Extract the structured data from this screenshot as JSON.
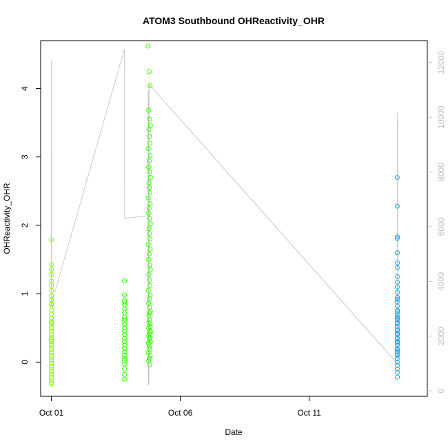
{
  "chart_data": {
    "type": "scatter",
    "title": "ATOM3 Southbound OHReactivity_OHR",
    "xlabel": "Date",
    "ylabel": "OHReactivity_OHR",
    "xlim": [
      "2016-09-30T14:00",
      "2016-10-15T14:00"
    ],
    "ylim": [
      -0.5,
      4.7
    ],
    "y2lim": [
      -200,
      12800
    ],
    "x_ticks": [
      {
        "label": "Oct 01",
        "value": "2016-10-01T00:00"
      },
      {
        "label": "Oct 06",
        "value": "2016-10-06T00:00"
      },
      {
        "label": "Oct 11",
        "value": "2016-10-11T00:00"
      }
    ],
    "y_ticks": [
      0,
      1,
      2,
      3,
      4
    ],
    "y2_ticks": [
      0,
      2000,
      4000,
      6000,
      8000,
      10000,
      12000
    ],
    "grid": false,
    "legend": "none",
    "colors": {
      "series_early": "#7fff00",
      "series_mid": "#33ff00",
      "series_late": "#1ca3e8",
      "secondary_line": "#c8c8c8",
      "right_axis": "#bfbfbf"
    },
    "series": [
      {
        "color": "#7fff00",
        "x": [
          "2016-10-01T00:00",
          "2016-10-01T00:00",
          "2016-10-01T00:05",
          "2016-10-01T00:05",
          "2016-10-01T00:10",
          "2016-10-01T00:10",
          "2016-10-01T00:00",
          "2016-10-01T00:05",
          "2016-10-01T00:05",
          "2016-10-01T00:10",
          "2016-10-01T00:00",
          "2016-10-01T00:05",
          "2016-10-01T00:10",
          "2016-10-01T00:00",
          "2016-10-01T00:05",
          "2016-10-01T00:10",
          "2016-10-01T00:00",
          "2016-10-01T00:05",
          "2016-10-01T00:10",
          "2016-10-01T00:00",
          "2016-10-01T00:05",
          "2016-10-01T00:10",
          "2016-10-01T00:00",
          "2016-10-01T00:05",
          "2016-10-01T00:10",
          "2016-10-01T00:00",
          "2016-10-01T00:05",
          "2016-10-01T00:10",
          "2016-10-01T00:00",
          "2016-10-01T00:05",
          "2016-10-01T00:10",
          "2016-10-01T00:00",
          "2016-10-01T00:05",
          "2016-10-01T00:10",
          "2016-10-01T00:00",
          "2016-10-01T00:05",
          "2016-10-01T00:10",
          "2016-10-01T00:00",
          "2016-10-01T00:05",
          "2016-10-01T00:10"
        ],
        "y": [
          1.79,
          1.43,
          1.36,
          1.28,
          1.18,
          1.05,
          0.97,
          0.91,
          0.84,
          0.76,
          0.7,
          0.64,
          0.6,
          0.56,
          0.51,
          0.45,
          0.4,
          0.36,
          0.33,
          0.3,
          0.26,
          0.22,
          0.18,
          0.14,
          0.1,
          0.06,
          0.02,
          -0.02,
          -0.06,
          -0.1,
          -0.14,
          -0.18,
          -0.22,
          -0.26,
          -0.3,
          -0.32,
          0.85,
          0.58,
          0.49,
          1.12
        ]
      },
      {
        "color": "#33ff00",
        "x": [
          "2016-10-03T20:00",
          "2016-10-03T20:00",
          "2016-10-03T20:05",
          "2016-10-03T20:00",
          "2016-10-03T20:05",
          "2016-10-03T20:00",
          "2016-10-03T20:05",
          "2016-10-03T20:00",
          "2016-10-03T20:05",
          "2016-10-03T20:00",
          "2016-10-03T20:05",
          "2016-10-03T20:00",
          "2016-10-03T20:05",
          "2016-10-03T20:00",
          "2016-10-03T20:05",
          "2016-10-03T20:00",
          "2016-10-03T20:05",
          "2016-10-03T20:00",
          "2016-10-03T20:05",
          "2016-10-03T20:00",
          "2016-10-03T20:05",
          "2016-10-03T20:00",
          "2016-10-03T20:05",
          "2016-10-03T20:00",
          "2016-10-03T20:05",
          "2016-10-03T20:00"
        ],
        "y": [
          1.19,
          0.98,
          0.9,
          0.84,
          0.78,
          0.72,
          0.66,
          0.6,
          0.55,
          0.5,
          0.45,
          0.4,
          0.35,
          0.3,
          0.25,
          0.2,
          0.15,
          0.1,
          0.05,
          0.02,
          -0.03,
          -0.1,
          -0.18,
          -0.25,
          0.88,
          0.63
        ]
      },
      {
        "color": "#33ff00",
        "x": [
          "2016-10-04T18:00",
          "2016-10-04T19:00",
          "2016-10-04T20:00",
          "2016-10-04T18:30",
          "2016-10-04T19:30",
          "2016-10-04T20:15",
          "2016-10-04T18:45",
          "2016-10-04T19:15",
          "2016-10-04T19:45",
          "2016-10-04T18:15",
          "2016-10-04T20:00",
          "2016-10-04T19:00",
          "2016-10-04T18:30",
          "2016-10-04T19:30",
          "2016-10-04T20:15",
          "2016-10-04T18:45",
          "2016-10-04T19:15",
          "2016-10-04T19:45",
          "2016-10-04T18:15",
          "2016-10-04T20:00",
          "2016-10-04T19:00",
          "2016-10-04T18:30",
          "2016-10-04T19:30",
          "2016-10-04T20:15",
          "2016-10-04T18:45",
          "2016-10-04T19:15",
          "2016-10-04T19:45",
          "2016-10-04T18:15",
          "2016-10-04T20:00",
          "2016-10-04T19:00",
          "2016-10-04T18:30",
          "2016-10-04T19:30",
          "2016-10-04T20:15",
          "2016-10-04T18:45",
          "2016-10-04T19:15",
          "2016-10-04T19:45",
          "2016-10-04T18:15",
          "2016-10-04T20:00",
          "2016-10-04T19:00",
          "2016-10-04T18:30",
          "2016-10-04T19:30",
          "2016-10-04T20:15",
          "2016-10-04T18:45",
          "2016-10-04T19:15",
          "2016-10-04T19:45",
          "2016-10-04T18:15",
          "2016-10-04T20:00",
          "2016-10-04T19:00",
          "2016-10-04T18:30",
          "2016-10-04T19:30",
          "2016-10-04T20:15",
          "2016-10-04T18:45",
          "2016-10-04T19:15",
          "2016-10-04T19:45",
          "2016-10-04T18:15",
          "2016-10-04T20:00",
          "2016-10-04T19:00",
          "2016-10-04T18:30",
          "2016-10-04T19:30",
          "2016-10-04T20:15",
          "2016-10-04T18:45",
          "2016-10-04T19:15",
          "2016-10-04T19:45",
          "2016-10-04T18:15",
          "2016-10-04T20:00"
        ],
        "y": [
          4.62,
          4.25,
          4.04,
          3.68,
          3.55,
          3.46,
          3.4,
          3.3,
          3.2,
          3.12,
          3.02,
          2.94,
          2.85,
          2.78,
          2.7,
          2.62,
          2.55,
          2.48,
          2.4,
          2.32,
          2.25,
          2.18,
          2.1,
          2.02,
          1.95,
          1.88,
          1.8,
          1.72,
          1.65,
          1.58,
          1.5,
          1.42,
          1.35,
          1.28,
          1.2,
          1.12,
          1.05,
          0.98,
          0.92,
          0.86,
          0.8,
          0.74,
          0.68,
          0.62,
          0.56,
          0.5,
          0.46,
          0.42,
          0.38,
          0.34,
          0.3,
          0.26,
          0.22,
          0.18,
          0.14,
          0.1,
          0.06,
          0.02,
          -0.04,
          0.44,
          0.58,
          0.72,
          0.36,
          0.28,
          0.52
        ]
      },
      {
        "color": "#1ca3e8",
        "x": [
          "2016-10-14T10:00",
          "2016-10-14T10:00",
          "2016-10-14T10:05",
          "2016-10-14T10:00",
          "2016-10-14T10:05",
          "2016-10-14T10:10",
          "2016-10-14T10:00",
          "2016-10-14T10:05",
          "2016-10-14T10:10",
          "2016-10-14T10:00",
          "2016-10-14T10:05",
          "2016-10-14T10:10",
          "2016-10-14T10:00",
          "2016-10-14T10:05",
          "2016-10-14T10:10",
          "2016-10-14T10:00",
          "2016-10-14T10:05",
          "2016-10-14T10:10",
          "2016-10-14T10:00",
          "2016-10-14T10:05",
          "2016-10-14T10:10",
          "2016-10-14T10:00",
          "2016-10-14T10:05",
          "2016-10-14T10:10",
          "2016-10-14T10:00",
          "2016-10-14T10:05",
          "2016-10-14T10:10",
          "2016-10-14T10:00",
          "2016-10-14T10:05",
          "2016-10-14T10:10",
          "2016-10-14T10:00",
          "2016-10-14T10:05",
          "2016-10-14T10:10",
          "2016-10-14T10:00",
          "2016-10-14T10:05",
          "2016-10-14T10:10",
          "2016-10-14T10:00",
          "2016-10-14T10:05",
          "2016-10-14T10:10",
          "2016-10-14T10:00",
          "2016-10-14T10:05",
          "2016-10-14T10:10",
          "2016-10-14T10:00",
          "2016-10-14T10:05"
        ],
        "y": [
          2.7,
          2.28,
          1.83,
          1.81,
          1.6,
          1.45,
          1.38,
          1.25,
          1.17,
          1.1,
          1.02,
          0.95,
          0.88,
          0.82,
          0.76,
          0.7,
          0.64,
          0.58,
          0.52,
          0.46,
          0.4,
          0.35,
          0.3,
          0.25,
          0.2,
          0.15,
          0.1,
          0.05,
          0.0,
          -0.05,
          -0.1,
          -0.15,
          -0.22,
          0.92,
          0.62,
          0.48,
          0.34,
          0.18,
          0.74,
          0.56,
          0.42,
          0.28,
          0.12,
          0.66
        ]
      }
    ],
    "secondary_line": {
      "axis": "right",
      "x": [
        "2016-10-01T00:00",
        "2016-10-01T00:05",
        "2016-10-01T00:10",
        "2016-10-01T00:15",
        "2016-10-03T20:00",
        "2016-10-03T20:05",
        "2016-10-03T20:10",
        "2016-10-04T18:00",
        "2016-10-04T18:05",
        "2016-10-04T18:10",
        "2016-10-04T18:15",
        "2016-10-04T18:20",
        "2016-10-04T18:25",
        "2016-10-04T18:30",
        "2016-10-04T18:35",
        "2016-10-04T18:40",
        "2016-10-04T18:45",
        "2016-10-04T18:50",
        "2016-10-04T18:55",
        "2016-10-04T19:00",
        "2016-10-14T10:00",
        "2016-10-14T10:05",
        "2016-10-14T10:10",
        "2016-10-14T10:15",
        "2016-10-14T10:20",
        "2016-10-14T10:25"
      ],
      "y": [
        3100,
        12000,
        12100,
        3200,
        12500,
        11800,
        6300,
        6400,
        10700,
        200,
        10900,
        300,
        11000,
        200,
        10800,
        5800,
        11000,
        300,
        10600,
        11200,
        1000,
        9600,
        9900,
        1300,
        9800,
        10200
      ]
    }
  }
}
